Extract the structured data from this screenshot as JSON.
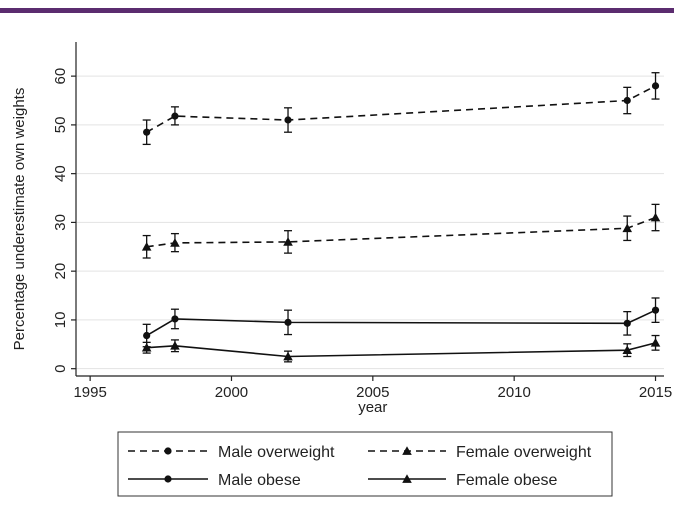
{
  "header": {
    "accent_color": "#5b2c6f"
  },
  "chart_data": {
    "type": "line",
    "xlabel": "year",
    "ylabel": "Percentage underestimate own weights",
    "xlim": [
      1994.5,
      2015.3
    ],
    "ylim": [
      -1.5,
      67
    ],
    "xticks": [
      1995,
      2000,
      2005,
      2010,
      2015
    ],
    "xtick_labels": [
      "1995",
      "2000",
      "2005",
      "2010",
      "2015"
    ],
    "yticks": [
      0,
      10,
      20,
      30,
      40,
      50,
      60
    ],
    "ytick_labels": [
      "0",
      "10",
      "20",
      "30",
      "40",
      "50",
      "60"
    ],
    "grid": true,
    "legend_position": "bottom",
    "error_bars": true,
    "x": [
      1997,
      1998,
      2002,
      2014,
      2015
    ],
    "series": [
      {
        "name": "Male overweight",
        "style": "dashed",
        "marker": "circle",
        "values": [
          48.5,
          51.8,
          51.0,
          55.0,
          58.0
        ],
        "lower": [
          46.0,
          50.0,
          48.5,
          52.3,
          55.3
        ],
        "upper": [
          51.0,
          53.7,
          53.5,
          57.7,
          60.7
        ]
      },
      {
        "name": "Female overweight",
        "style": "dashed",
        "marker": "triangle",
        "values": [
          25.0,
          25.8,
          26.0,
          28.8,
          31.0
        ],
        "lower": [
          22.7,
          24.0,
          23.7,
          26.3,
          28.3
        ],
        "upper": [
          27.3,
          27.7,
          28.3,
          31.3,
          33.7
        ]
      },
      {
        "name": "Male obese",
        "style": "solid",
        "marker": "circle",
        "values": [
          6.8,
          10.2,
          9.5,
          9.3,
          12.0
        ],
        "lower": [
          4.5,
          8.2,
          7.0,
          6.9,
          9.5
        ],
        "upper": [
          9.1,
          12.2,
          12.0,
          11.7,
          14.5
        ]
      },
      {
        "name": "Female obese",
        "style": "solid",
        "marker": "triangle",
        "values": [
          4.3,
          4.7,
          2.5,
          3.8,
          5.3
        ],
        "lower": [
          3.2,
          3.5,
          1.4,
          2.5,
          3.8
        ],
        "upper": [
          5.4,
          5.9,
          3.6,
          5.1,
          6.8
        ]
      }
    ]
  }
}
